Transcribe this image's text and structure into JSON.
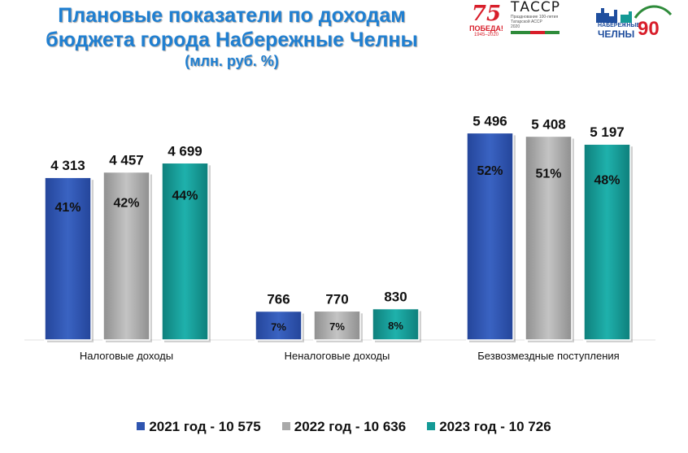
{
  "header": {
    "title_line1": "Плановые показатели по доходам",
    "title_line2": "бюджета города Набережные Челны",
    "subtitle": "(млн. руб. %)"
  },
  "logos": {
    "pobeda": {
      "number": "75",
      "word": "ПОБЕДА!",
      "years": "1945–2020"
    },
    "tassr": {
      "word": "ТАССР",
      "text": "Празднование 100-летия Татарской АССР",
      "year": "2020"
    },
    "chelny": {
      "line1": "НАБЕРЕЖНЫЕ",
      "line2": "ЧЕЛНЫ",
      "number": "90"
    }
  },
  "chart_data": {
    "type": "bar",
    "title": "Плановые показатели по доходам бюджета города Набережные Челны",
    "subtitle": "(млн. руб. %)",
    "categories": [
      "Налоговые доходы",
      "Неналоговые доходы",
      "Безвозмездные поступления"
    ],
    "series": [
      {
        "name": "2021 год - 10 575",
        "color": "#2f55b0",
        "values": [
          4313,
          766,
          5496
        ],
        "value_labels": [
          "4 313",
          "766",
          "5 496"
        ],
        "shares": [
          "41%",
          "7%",
          "52%"
        ]
      },
      {
        "name": "2022 год - 10 636",
        "color": "#a9a9a9",
        "values": [
          4457,
          770,
          5408
        ],
        "value_labels": [
          "4 457",
          "770",
          "5 408"
        ],
        "shares": [
          "42%",
          "7%",
          "51%"
        ]
      },
      {
        "name": "2023 год - 10 726",
        "color": "#149a96",
        "values": [
          4699,
          830,
          5197
        ],
        "value_labels": [
          "4 699",
          "830",
          "5 197"
        ],
        "shares": [
          "44%",
          "8%",
          "48%"
        ]
      }
    ],
    "ylim": [
      0,
      6000
    ],
    "grid": false,
    "legend": "bottom"
  }
}
